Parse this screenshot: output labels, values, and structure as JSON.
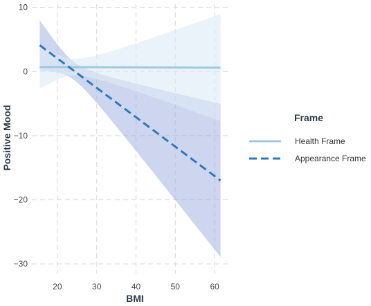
{
  "chart_data": {
    "type": "line",
    "title": "",
    "xlabel": "BMI",
    "ylabel": "Positive Mood",
    "xlim": [
      13.5,
      63.5
    ],
    "ylim": [
      -31.5,
      10.5
    ],
    "x_ticks": [
      20,
      30,
      40,
      50,
      60
    ],
    "y_ticks": [
      10,
      0,
      -10,
      -20,
      -30
    ],
    "x_tick_labels": [
      "20",
      "30",
      "40",
      "50",
      "60"
    ],
    "y_tick_labels": [
      "10",
      "0",
      "−10",
      "−20",
      "−30"
    ],
    "grid": true,
    "legend": {
      "title": "Frame",
      "position": "right"
    },
    "x": [
      15.5,
      61.5
    ],
    "series": [
      {
        "name": "Health Frame",
        "style": "solid",
        "color": "#9ecae1",
        "values": [
          0.7,
          0.6
        ],
        "ci_lower": [
          -2.6,
          -7.7
        ],
        "ci_upper": [
          4.2,
          9.0
        ],
        "ci_color": "#deebf7"
      },
      {
        "name": "Appearance Frame",
        "style": "dashed",
        "color": "#2b7bba",
        "values": [
          4.1,
          -17.0
        ],
        "ci_lower": [
          0.2,
          -29.0
        ],
        "ci_upper": [
          8.0,
          -5.1
        ],
        "ci_color": "#a6b3e0"
      }
    ]
  }
}
